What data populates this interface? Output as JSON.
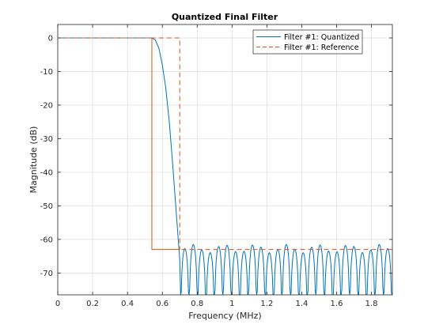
{
  "chart_data": {
    "type": "line",
    "title": "Quantized Final Filter",
    "xlabel": "Frequency (MHz)",
    "ylabel": "Magnitude (dB)",
    "xlim": [
      0,
      1.92
    ],
    "ylim": [
      -76.5,
      4
    ],
    "grid": true,
    "legend_placement": "top-right",
    "x_ticks": [
      0,
      0.2,
      0.4,
      0.6,
      0.8,
      1,
      1.2,
      1.4,
      1.6,
      1.8
    ],
    "x_tick_labels": [
      "0",
      "0.2",
      "0.4",
      "0.6",
      "0.8",
      "1",
      "1.2",
      "1.4",
      "1.6",
      "1.8"
    ],
    "y_ticks": [
      0,
      -10,
      -20,
      -30,
      -40,
      -50,
      -60,
      -70
    ],
    "y_tick_labels": [
      "0",
      "-10",
      "-20",
      "-30",
      "-40",
      "-50",
      "-60",
      "-70"
    ],
    "series": [
      {
        "name": "Filter #1: Quantized",
        "style": "solid",
        "color": "#0072BD",
        "passband": {
          "x": [
            0,
            0.54,
            0.56,
            0.58,
            0.6,
            0.62,
            0.64,
            0.66,
            0.68,
            0.7
          ],
          "y": [
            0,
            0,
            -0.6,
            -3,
            -8,
            -15,
            -25,
            -38,
            -52,
            -66
          ]
        },
        "stopband": {
          "start": 0.705,
          "end": 1.92,
          "lobe_period": 0.0485,
          "peak_min": -64,
          "peak_max": -61.5,
          "floor": -76.5
        }
      },
      {
        "name": "Filter #1: Reference",
        "style": "dashed",
        "color": "#D95319",
        "x": [
          0,
          0.54,
          0.54,
          0.7,
          0.7,
          0.54,
          0.54,
          1.92
        ],
        "y": [
          0,
          0,
          -63,
          -63,
          0,
          0,
          -63,
          -63
        ],
        "mask": {
          "passband_edge": 0.54,
          "stopband_edge": 0.7,
          "passband_level": 0,
          "stopband_level": -63
        }
      }
    ]
  }
}
